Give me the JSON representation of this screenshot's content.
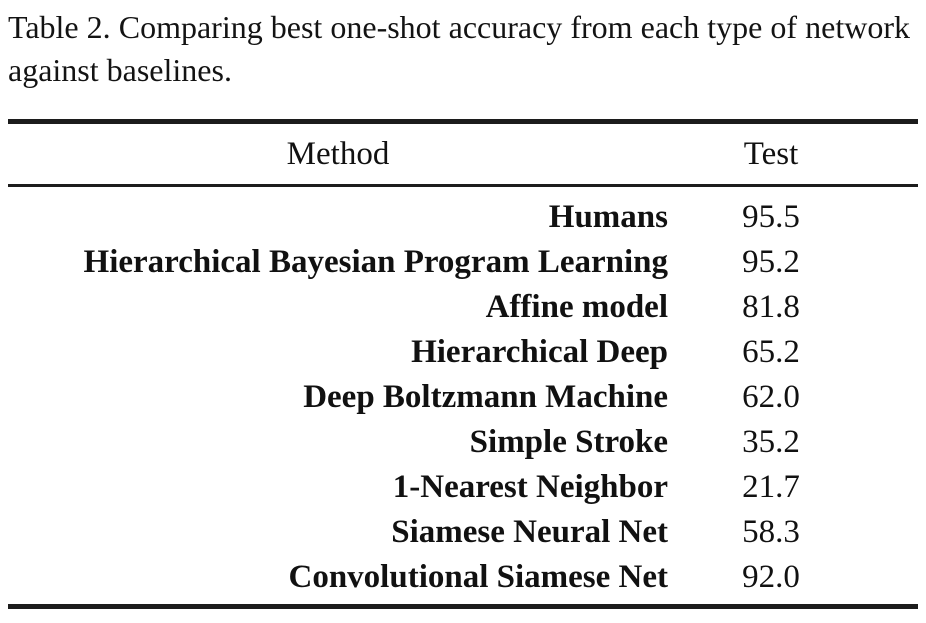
{
  "caption": "Table 2. Comparing best one-shot accuracy from each type of network against baselines.",
  "table": {
    "columns": [
      "Method",
      "Test"
    ],
    "rows": [
      {
        "method": "Humans",
        "test": "95.5"
      },
      {
        "method": "Hierarchical Bayesian Program Learning",
        "test": "95.2"
      },
      {
        "method": "Affine model",
        "test": "81.8"
      },
      {
        "method": "Hierarchical Deep",
        "test": "65.2"
      },
      {
        "method": "Deep Boltzmann Machine",
        "test": "62.0"
      },
      {
        "method": "Simple Stroke",
        "test": "35.2"
      },
      {
        "method": "1-Nearest Neighbor",
        "test": "21.7"
      },
      {
        "method": "Siamese Neural Net",
        "test": "58.3"
      },
      {
        "method": "Convolutional Siamese Net",
        "test": "92.0"
      }
    ]
  }
}
